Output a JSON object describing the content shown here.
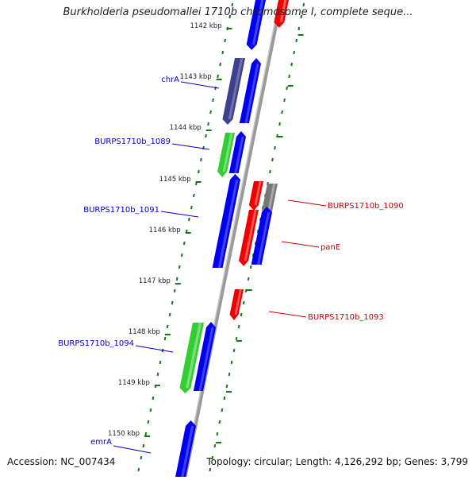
{
  "title": "Burkholderia pseudomallei 1710b chromosome I, complete seque...",
  "accession": "Accession: NC_007434",
  "topology": "Topology: circular; Length: 4,126,292 bp; Genes: 3,799",
  "colors": {
    "blue": "#0000ee",
    "purple": "#3f3f8f",
    "green": "#33cc33",
    "red": "#ee0000",
    "gray": "#777777",
    "tick_green": "#127812",
    "label_blue": "#0000cc",
    "label_red": "#cc0000"
  },
  "kbp_labels": [
    "1142 kbp",
    "1143 kbp",
    "1144 kbp",
    "1145 kbp",
    "1146 kbp",
    "1147 kbp",
    "1148 kbp",
    "1149 kbp",
    "1150 kbp"
  ],
  "genes": [
    {
      "name": "chrA",
      "strand": "left"
    },
    {
      "name": "BURPS1710b_1089",
      "strand": "left"
    },
    {
      "name": "BURPS1710b_1091",
      "strand": "left"
    },
    {
      "name": "BURPS1710b_1094",
      "strand": "left"
    },
    {
      "name": "emrA",
      "strand": "left"
    },
    {
      "name": "BURPS1710b_1090",
      "strand": "right"
    },
    {
      "name": "panE",
      "strand": "right"
    },
    {
      "name": "BURPS1710b_1093",
      "strand": "right"
    }
  ]
}
